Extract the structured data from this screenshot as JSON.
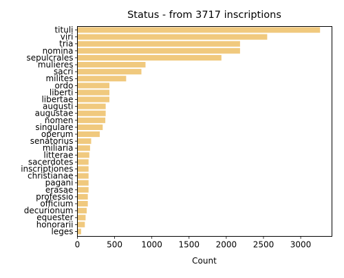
{
  "chart_data": {
    "type": "bar",
    "orientation": "horizontal",
    "title": "Status - from 3717 inscriptions",
    "xlabel": "Count",
    "ylabel": "",
    "xlim": [
      0,
      3420
    ],
    "xticks": [
      0,
      500,
      1000,
      1500,
      2000,
      2500,
      3000
    ],
    "grid": false,
    "bar_color": "#f0c97e",
    "categories": [
      "tituli",
      "viri",
      "tria",
      "nomina",
      "sepulcrales",
      "mulieres",
      "sacri",
      "milites",
      "ordo",
      "liberti",
      "libertae",
      "augusti",
      "augustae",
      "nomen",
      "singulare",
      "operum",
      "senatorius",
      "miliaria",
      "litterae",
      "sacerdotes",
      "inscriptiones",
      "christianae",
      "pagani",
      "erasae",
      "professio",
      "officium",
      "decurionum",
      "equester",
      "honorarii",
      "leges"
    ],
    "values": [
      3260,
      2550,
      2185,
      2185,
      1935,
      915,
      860,
      655,
      430,
      430,
      430,
      380,
      380,
      375,
      340,
      300,
      185,
      170,
      160,
      150,
      150,
      150,
      150,
      150,
      140,
      140,
      125,
      110,
      100,
      50
    ]
  }
}
